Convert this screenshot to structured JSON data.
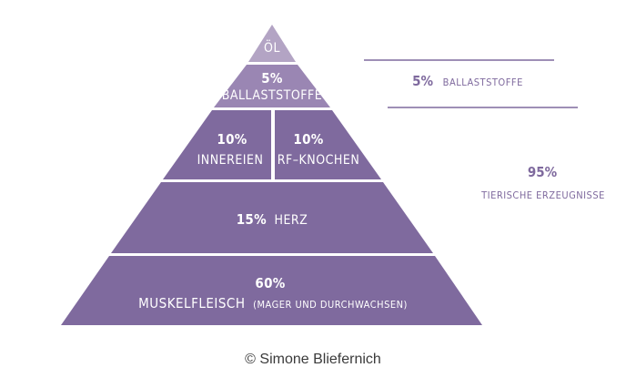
{
  "pyramid": {
    "colors": {
      "top": "#b3a4c4",
      "second": "#9a86b3",
      "main": "#7f6a9e",
      "divider": "#ffffff",
      "side_text": "#7f6a9e",
      "side_line": "#7f6a9e"
    },
    "levels": {
      "oel": {
        "label": "ÖL"
      },
      "ballast": {
        "percent": "5%",
        "label": "BALLASTSTOFFE"
      },
      "innereien": {
        "percent": "10%",
        "label": "INNEREIEN"
      },
      "rf_knochen": {
        "percent": "10%",
        "label": "RF–KNOCHEN"
      },
      "herz": {
        "percent": "15%",
        "label": "HERZ"
      },
      "muskel": {
        "percent": "60%",
        "label": "MUSKELFLEISCH",
        "sublabel": "(MAGER UND DURCHWACHSEN)"
      }
    }
  },
  "side_notes": {
    "ballast": {
      "percent": "5%",
      "label": "BALLASTSTOFFE"
    },
    "tierische": {
      "percent": "95%",
      "label": "TIERISCHE ERZEUGNISSE"
    }
  },
  "credit": "© Simone Bliefernich"
}
